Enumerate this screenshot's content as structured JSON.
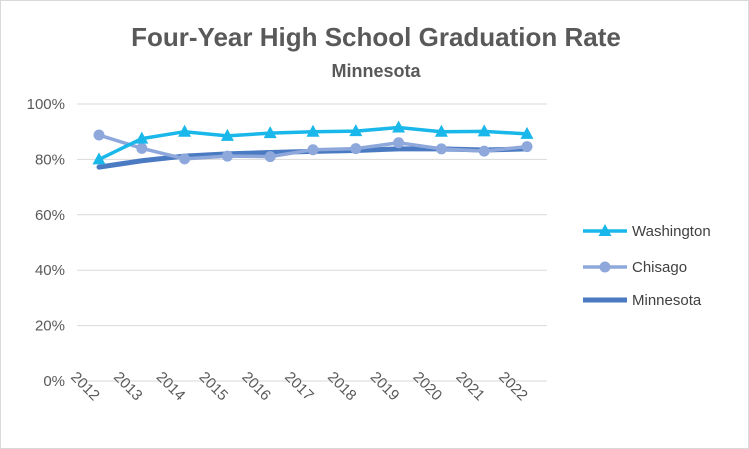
{
  "chart_data": {
    "type": "line",
    "title": "Four-Year High School Graduation Rate",
    "subtitle": "Minnesota",
    "xlabel": "",
    "ylabel": "",
    "categories": [
      "2012",
      "2013",
      "2014",
      "2015",
      "2016",
      "2017",
      "2018",
      "2019",
      "2020",
      "2021",
      "2022"
    ],
    "ylim": [
      0,
      100
    ],
    "yticks": [
      "0%",
      "20%",
      "40%",
      "60%",
      "80%",
      "100%"
    ],
    "ytick_values": [
      0,
      20,
      40,
      60,
      80,
      100
    ],
    "grid": true,
    "legend_position": "right",
    "series": [
      {
        "name": "Washington",
        "color": "#1ab7ea",
        "marker": "triangle",
        "values": [
          80,
          87.5,
          90,
          88.5,
          89.5,
          90,
          90.2,
          91.5,
          90,
          90.1,
          89.2
        ]
      },
      {
        "name": "Chisago",
        "color": "#8fa8dc",
        "marker": "circle",
        "values": [
          88.8,
          84,
          80.2,
          81.2,
          81,
          83.5,
          83.9,
          86,
          83.8,
          83,
          84.6
        ]
      },
      {
        "name": "Minnesota",
        "color": "#4a7ac2",
        "marker": "none",
        "values": [
          77.2,
          79.5,
          81.2,
          82,
          82.5,
          82.9,
          83.2,
          83.8,
          83.8,
          83.4,
          83.8
        ]
      }
    ]
  }
}
